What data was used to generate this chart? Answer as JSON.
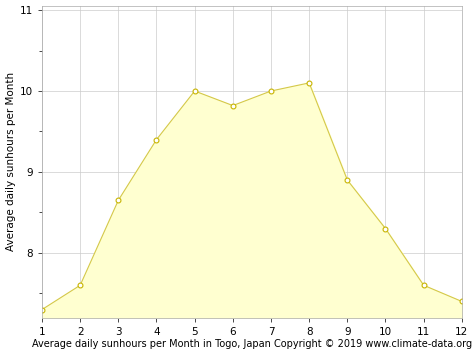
{
  "months": [
    1,
    2,
    3,
    4,
    5,
    6,
    7,
    8,
    9,
    10,
    11,
    12
  ],
  "sunhours": [
    7.3,
    7.6,
    8.65,
    9.4,
    10.0,
    9.82,
    10.0,
    10.1,
    8.9,
    8.3,
    7.6,
    7.4
  ],
  "fill_color": "#FFFFD0",
  "line_color": "#D4C84A",
  "marker_color": "#FFFFFF",
  "marker_edge_color": "#C8B400",
  "bg_color": "#FFFFFF",
  "grid_color": "#CCCCCC",
  "xlabel": "Average daily sunhours per Month in Togo, Japan Copyright © 2019 www.climate-data.org",
  "ylabel": "Average daily sunhours per Month",
  "xlim": [
    1,
    12
  ],
  "ylim": [
    7.2,
    11.05
  ],
  "ylim_fill_bottom": 7.2,
  "yticks": [
    8,
    9,
    10,
    11
  ],
  "xticks": [
    1,
    2,
    3,
    4,
    5,
    6,
    7,
    8,
    9,
    10,
    11,
    12
  ],
  "xlabel_fontsize": 7,
  "ylabel_fontsize": 7.5,
  "tick_fontsize": 7.5
}
